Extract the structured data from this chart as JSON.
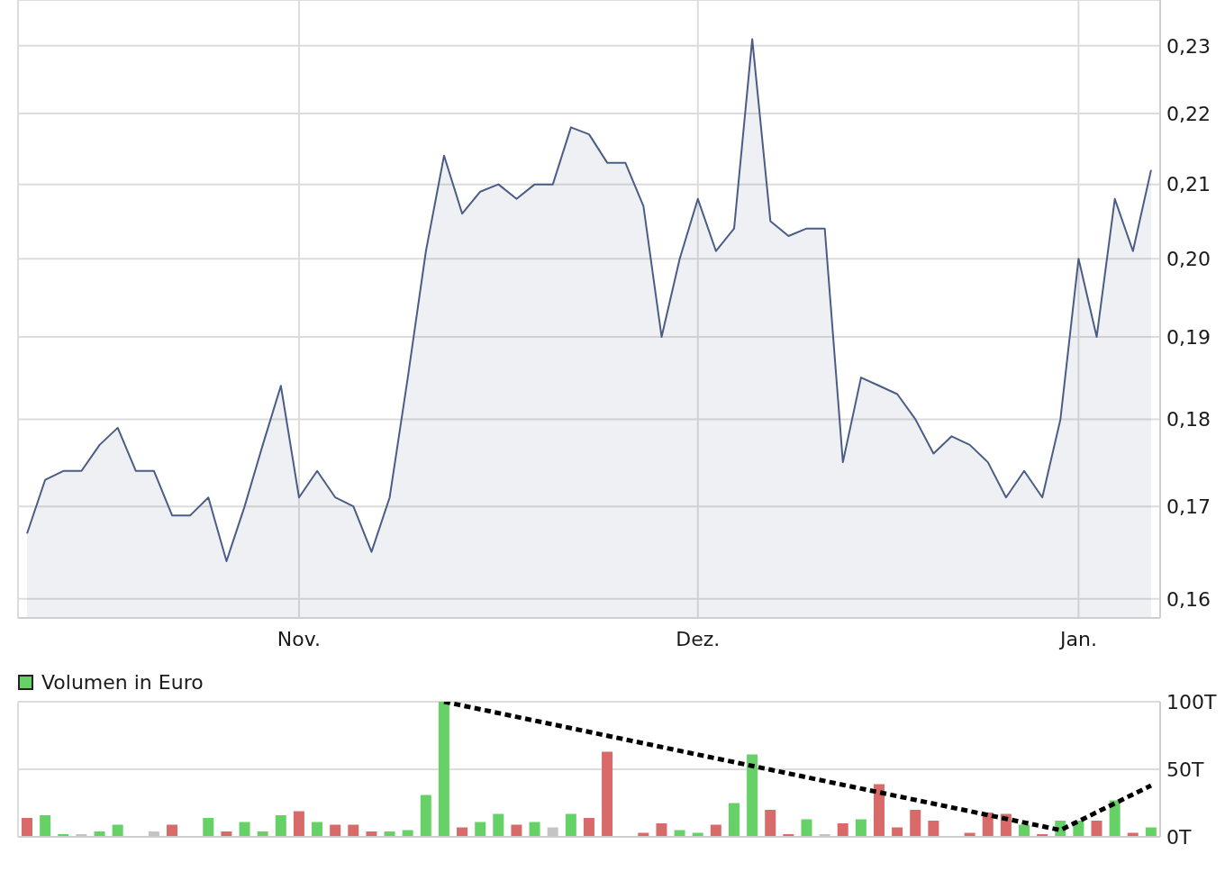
{
  "chart_data": [
    {
      "type": "area",
      "categories": [
        null,
        null,
        null,
        null,
        null,
        null,
        null,
        null,
        null,
        null,
        null,
        null,
        null,
        null,
        null,
        "Nov.",
        null,
        null,
        null,
        null,
        null,
        null,
        null,
        null,
        null,
        null,
        null,
        null,
        null,
        null,
        null,
        null,
        null,
        null,
        null,
        null,
        null,
        "Dez.",
        null,
        null,
        null,
        null,
        null,
        null,
        null,
        null,
        null,
        null,
        null,
        null,
        null,
        null,
        null,
        null,
        null,
        null,
        null,
        null,
        "Jan.",
        null,
        null,
        null,
        null
      ],
      "series": [
        {
          "color": "#4b5d85",
          "values": [
            0.167,
            0.173,
            0.174,
            0.174,
            0.177,
            0.179,
            0.174,
            0.174,
            0.169,
            0.169,
            0.171,
            0.164,
            0.17,
            0.177,
            0.184,
            0.171,
            0.174,
            0.171,
            0.17,
            0.165,
            0.171,
            0.185,
            0.201,
            0.214,
            0.206,
            0.209,
            0.21,
            0.208,
            0.21,
            0.21,
            0.218,
            0.217,
            0.213,
            0.213,
            0.207,
            0.19,
            0.2,
            0.208,
            0.201,
            0.204,
            0.231,
            0.205,
            0.203,
            0.204,
            0.204,
            0.175,
            0.185,
            0.184,
            0.183,
            0.18,
            0.176,
            0.178,
            0.177,
            0.175,
            0.171,
            0.174,
            0.171,
            0.18,
            0.2,
            0.19,
            0.208,
            0.201,
            0.212
          ]
        }
      ],
      "ylim": [
        0.158,
        0.237
      ],
      "yticks": [
        {
          "value": 0.16,
          "label": "0,16"
        },
        {
          "value": 0.17,
          "label": "0,17"
        },
        {
          "value": 0.18,
          "label": "0,18"
        },
        {
          "value": 0.19,
          "label": "0,19"
        },
        {
          "value": 0.2,
          "label": "0,20"
        },
        {
          "value": 0.21,
          "label": "0,21"
        },
        {
          "value": 0.22,
          "label": "0,22"
        },
        {
          "value": 0.23,
          "label": "0,23"
        }
      ],
      "log": true,
      "grid": true
    },
    {
      "type": "bar",
      "categories": [
        null,
        null,
        null,
        null,
        null,
        null,
        null,
        null,
        null,
        null,
        null,
        null,
        null,
        null,
        null,
        null,
        null,
        null,
        null,
        null,
        null,
        null,
        null,
        null,
        null,
        null,
        null,
        null,
        null,
        null,
        null,
        null,
        null,
        null,
        null,
        null,
        null,
        null,
        null,
        null,
        null,
        null,
        null,
        null,
        null,
        null,
        null,
        null,
        null,
        null,
        null,
        null,
        null,
        null,
        null,
        null,
        null,
        null,
        null,
        null,
        null,
        null,
        null
      ],
      "series": [
        {
          "name": "Volumen in Euro",
          "color": "#66d166",
          "colors": [
            "#d96a6a",
            "#66d166",
            "#66d166",
            "#c4c4c4",
            "#66d166",
            "#66d166",
            null,
            "#c4c4c4",
            "#d96a6a",
            null,
            "#66d166",
            "#d96a6a",
            "#66d166",
            "#66d166",
            "#66d166",
            "#d96a6a",
            "#66d166",
            "#d96a6a",
            "#d96a6a",
            "#d96a6a",
            "#66d166",
            "#66d166",
            "#66d166",
            "#66d166",
            "#d96a6a",
            "#66d166",
            "#66d166",
            "#d96a6a",
            "#66d166",
            "#c4c4c4",
            "#66d166",
            "#d96a6a",
            "#d96a6a",
            null,
            "#d96a6a",
            "#d96a6a",
            "#66d166",
            "#66d166",
            "#d96a6a",
            "#66d166",
            "#66d166",
            "#d96a6a",
            "#d96a6a",
            "#66d166",
            "#c4c4c4",
            "#d96a6a",
            "#66d166",
            "#d96a6a",
            "#d96a6a",
            "#d96a6a",
            "#d96a6a",
            null,
            "#d96a6a",
            "#d96a6a",
            "#d96a6a",
            "#66d166",
            "#d96a6a",
            "#66d166",
            "#66d166",
            "#d96a6a",
            "#66d166",
            "#d96a6a",
            "#66d166"
          ],
          "values": [
            14,
            16,
            2,
            2,
            4,
            9,
            null,
            4,
            9,
            null,
            14,
            4,
            11,
            4,
            16,
            19,
            11,
            9,
            9,
            4,
            4,
            5,
            31,
            100,
            7,
            11,
            17,
            9,
            11,
            7,
            17,
            14,
            63,
            null,
            3,
            10,
            5,
            3,
            9,
            25,
            61,
            20,
            2,
            13,
            2,
            10,
            13,
            39,
            7,
            20,
            12,
            null,
            3,
            18,
            17,
            9,
            2,
            12,
            12,
            12,
            27,
            3,
            7
          ]
        },
        {
          "type": "line",
          "color": "#000000",
          "line_style": "dotted",
          "values": [
            null,
            null,
            null,
            null,
            null,
            null,
            null,
            null,
            null,
            null,
            null,
            null,
            null,
            null,
            null,
            null,
            null,
            null,
            null,
            null,
            null,
            null,
            null,
            100,
            null,
            null,
            null,
            null,
            null,
            null,
            null,
            null,
            null,
            null,
            null,
            null,
            null,
            null,
            null,
            null,
            null,
            null,
            null,
            null,
            null,
            null,
            null,
            null,
            null,
            null,
            null,
            null,
            null,
            null,
            null,
            null,
            null,
            5,
            null,
            null,
            null,
            null,
            38
          ]
        }
      ],
      "ylim": [
        0,
        100
      ],
      "yticks": [
        {
          "value": 0,
          "label": "0T"
        },
        {
          "value": 50,
          "label": "50T"
        },
        {
          "value": 100,
          "label": "100T"
        }
      ],
      "tick_labels": "y",
      "grid": true,
      "legend": "top left"
    }
  ]
}
